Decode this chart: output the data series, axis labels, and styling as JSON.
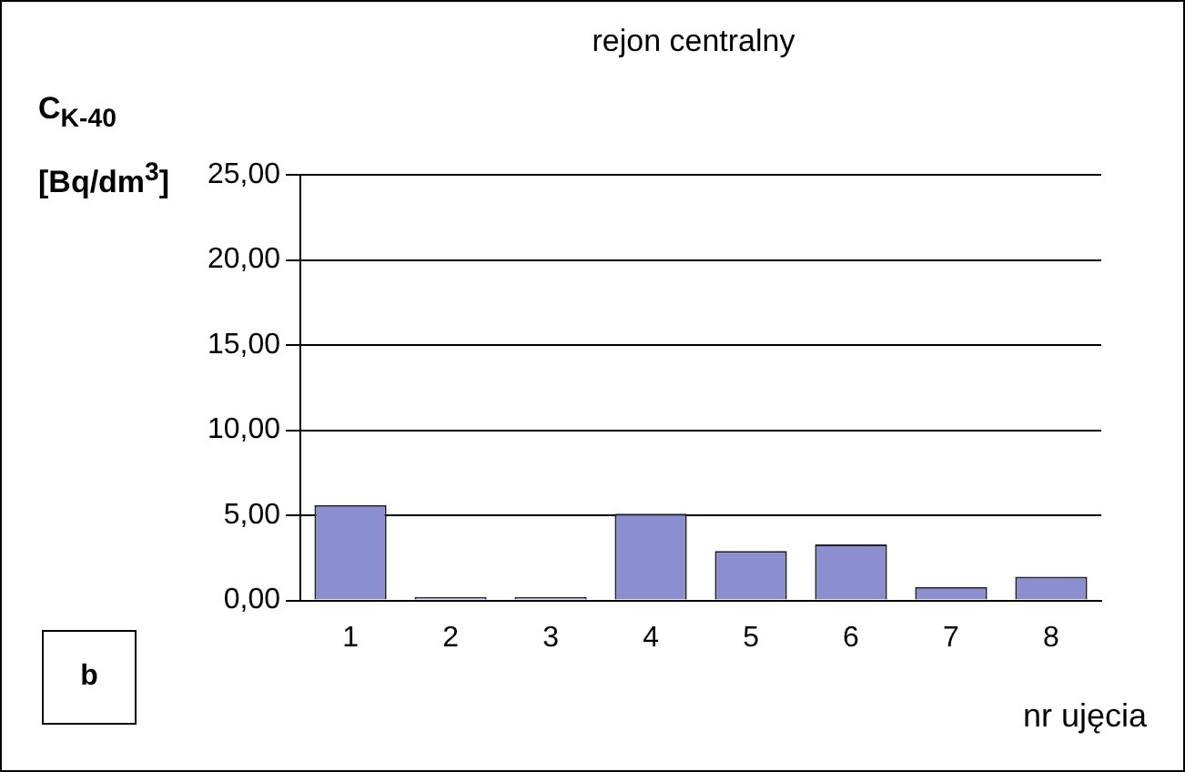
{
  "chart_data": {
    "type": "bar",
    "title": "rejon centralny",
    "xlabel": "nr ujęcia",
    "ylabel": "C$_{K-40}$ [Bq/dm$^{3}$]",
    "categories": [
      "1",
      "2",
      "3",
      "4",
      "5",
      "6",
      "7",
      "8"
    ],
    "values": [
      5.6,
      0.2,
      0.2,
      5.1,
      2.9,
      3.3,
      0.8,
      1.4
    ],
    "color": "#8c8fcf",
    "ylim": [
      0,
      25
    ],
    "yticks": [
      {
        "value": 0,
        "label": "0,00"
      },
      {
        "value": 5,
        "label": "5,00"
      },
      {
        "value": 10,
        "label": "10,00"
      },
      {
        "value": 15,
        "label": "15,00"
      },
      {
        "value": 20,
        "label": "20,00"
      },
      {
        "value": 25,
        "label": "25,00"
      }
    ],
    "grid": "y",
    "annotations": [
      "b"
    ]
  }
}
